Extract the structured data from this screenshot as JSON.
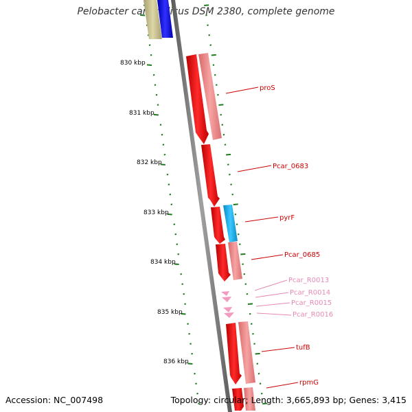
{
  "title": "Pelobacter carbinolicus DSM 2380, complete genome",
  "footer": {
    "accession": "Accession: NC_007498",
    "stats": "Topology: circular; Length: 3,665,893 bp; Genes: 3,415"
  },
  "colors": {
    "backbone": "#808080",
    "tick": "#1f7a1f",
    "cds_strong": "#ee1111",
    "cds_light": "#f08a8a",
    "pyrF": "#1ab0e8",
    "blue_gene": "#1010ee",
    "olive_gene": "#c8c08a",
    "rna": "#f29ac0",
    "label_red": "#cc0000",
    "label_pink": "#e68ab4"
  },
  "scale": {
    "labels": [
      "830 kbp",
      "831 kbp",
      "832 kbp",
      "833 kbp",
      "834 kbp",
      "835 kbp",
      "836 kbp"
    ]
  },
  "gene_labels": [
    {
      "name": "proS",
      "kind": "cds"
    },
    {
      "name": "Pcar_0683",
      "kind": "cds"
    },
    {
      "name": "pyrF",
      "kind": "cds"
    },
    {
      "name": "Pcar_0685",
      "kind": "cds"
    },
    {
      "name": "Pcar_R0013",
      "kind": "rna"
    },
    {
      "name": "Pcar_R0014",
      "kind": "rna"
    },
    {
      "name": "Pcar_R0015",
      "kind": "rna"
    },
    {
      "name": "Pcar_R0016",
      "kind": "rna"
    },
    {
      "name": "tufB",
      "kind": "cds"
    },
    {
      "name": "rpmG",
      "kind": "cds"
    }
  ]
}
